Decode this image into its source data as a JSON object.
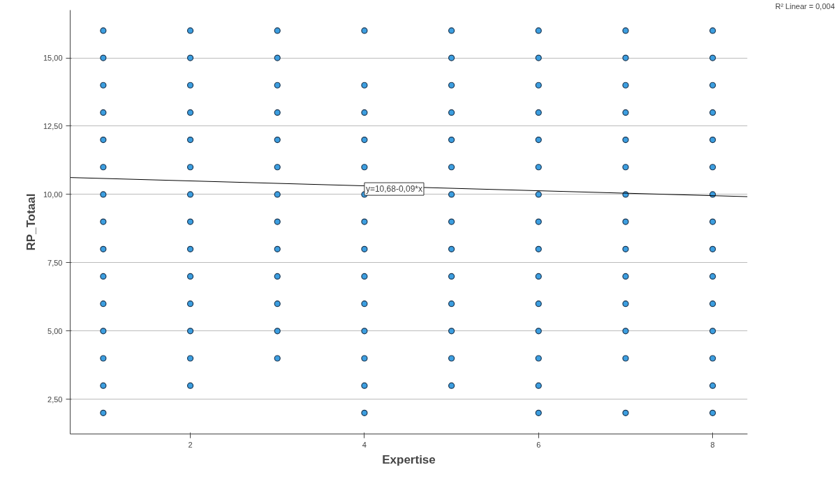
{
  "chart_data": {
    "type": "scatter",
    "xlabel": "Expertise",
    "ylabel": "RP_Totaal",
    "xlim": [
      0.62,
      8.4
    ],
    "ylim": [
      1.23,
      16.75
    ],
    "xticks": [
      2,
      4,
      6,
      8
    ],
    "yticks": [
      {
        "value": 2.5,
        "label": "2,50"
      },
      {
        "value": 5,
        "label": "5,00"
      },
      {
        "value": 7.5,
        "label": "7,50"
      },
      {
        "value": 10,
        "label": "10,00"
      },
      {
        "value": 12.5,
        "label": "12,50"
      },
      {
        "value": 15,
        "label": "15,00"
      }
    ],
    "grid": "y",
    "marker": "circle",
    "series": [
      {
        "color": "#3c9ee0",
        "x": [
          1,
          1,
          1,
          1,
          1,
          1,
          1,
          1,
          1,
          1,
          1,
          1,
          1,
          1,
          1,
          2,
          2,
          2,
          2,
          2,
          2,
          2,
          2,
          2,
          2,
          2,
          2,
          2,
          2,
          3,
          3,
          3,
          3,
          3,
          3,
          3,
          3,
          3,
          3,
          3,
          3,
          3,
          4,
          4,
          4,
          4,
          4,
          4,
          4,
          4,
          4,
          4,
          4,
          4,
          4,
          4,
          5,
          5,
          5,
          5,
          5,
          5,
          5,
          5,
          5,
          5,
          5,
          5,
          5,
          5,
          6,
          6,
          6,
          6,
          6,
          6,
          6,
          6,
          6,
          6,
          6,
          6,
          6,
          6,
          6,
          7,
          7,
          7,
          7,
          7,
          7,
          7,
          7,
          7,
          7,
          7,
          7,
          7,
          7,
          8,
          8,
          8,
          8,
          8,
          8,
          8,
          8,
          8,
          8,
          8,
          8,
          8,
          8,
          8
        ],
        "values": [
          2,
          3,
          4,
          5,
          6,
          7,
          8,
          9,
          10,
          11,
          12,
          13,
          14,
          15,
          16,
          3,
          4,
          5,
          6,
          7,
          8,
          9,
          10,
          11,
          12,
          13,
          14,
          15,
          16,
          4,
          5,
          6,
          7,
          8,
          9,
          10,
          11,
          12,
          13,
          14,
          15,
          16,
          2,
          3,
          4,
          5,
          6,
          7,
          8,
          9,
          10,
          11,
          12,
          13,
          14,
          16,
          3,
          4,
          5,
          6,
          7,
          8,
          9,
          10,
          11,
          12,
          13,
          14,
          15,
          16,
          2,
          3,
          4,
          5,
          6,
          7,
          8,
          9,
          10,
          11,
          12,
          13,
          14,
          15,
          16,
          2,
          4,
          5,
          6,
          7,
          8,
          9,
          10,
          11,
          12,
          13,
          14,
          15,
          16,
          2,
          3,
          4,
          5,
          6,
          7,
          8,
          9,
          10,
          11,
          12,
          13,
          14,
          15,
          16
        ]
      },
      {
        "type": "line",
        "marker": "none",
        "color": "#000000",
        "x": [
          0.62,
          8.4
        ],
        "values": [
          10.62,
          9.92
        ]
      }
    ],
    "annotations": [
      {
        "text": "y=10,68-0,09*x",
        "x": 4.0,
        "y": 10.2
      },
      "R² Linear = 0,004"
    ]
  }
}
